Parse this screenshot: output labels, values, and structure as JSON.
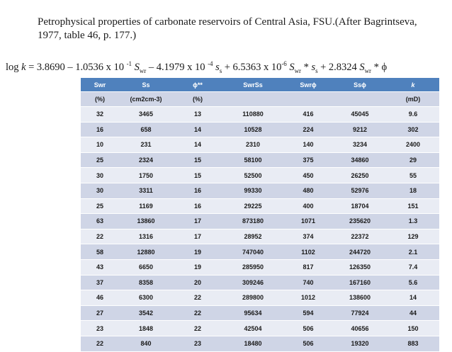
{
  "title": "Petrophysical properties of carbonate reservoirs  of Central Asia, FSU.(After Bagrintseva, 1977, table 46, p. 177.)",
  "formula": {
    "lhs_log": "log ",
    "lhs_k": "k",
    "eq_const": " = 3.8690 – 1.0536 x 10 ",
    "exp1": "-1",
    "sym1": " S",
    "sub1": "wr",
    "t2": " – 4.1979 x 10 ",
    "exp2": "-4",
    "sym2": " s",
    "sub2": "s",
    "t3": " + 6.5363 x 10",
    "exp3": "-6",
    "sym3": " S",
    "sub3": "wr",
    "t3b": " * ",
    "sym3b": "s",
    "sub3b": "s",
    "t4": " + 2.8324 ",
    "sym4": "S",
    "sub4": "wr",
    "t4b": " * ϕ"
  },
  "table": {
    "headers": [
      "Swr",
      "Ss",
      "ϕ**",
      "SwrSs",
      "Swrϕ",
      "Ssϕ",
      "k"
    ],
    "units": [
      "(%)",
      "(cm2cm-3)",
      "(%)",
      "",
      "",
      "",
      "(mD)"
    ],
    "rows": [
      [
        "32",
        "3465",
        "13",
        "110880",
        "416",
        "45045",
        "9.6"
      ],
      [
        "16",
        "658",
        "14",
        "10528",
        "224",
        "9212",
        "302"
      ],
      [
        "10",
        "231",
        "14",
        "2310",
        "140",
        "3234",
        "2400"
      ],
      [
        "25",
        "2324",
        "15",
        "58100",
        "375",
        "34860",
        "29"
      ],
      [
        "30",
        "1750",
        "15",
        "52500",
        "450",
        "26250",
        "55"
      ],
      [
        "30",
        "3311",
        "16",
        "99330",
        "480",
        "52976",
        "18"
      ],
      [
        "25",
        "1169",
        "16",
        "29225",
        "400",
        "18704",
        "151"
      ],
      [
        "63",
        "13860",
        "17",
        "873180",
        "1071",
        "235620",
        "1.3"
      ],
      [
        "22",
        "1316",
        "17",
        "28952",
        "374",
        "22372",
        "129"
      ],
      [
        "58",
        "12880",
        "19",
        "747040",
        "1102",
        "244720",
        "2.1"
      ],
      [
        "43",
        "6650",
        "19",
        "285950",
        "817",
        "126350",
        "7.4"
      ],
      [
        "37",
        "8358",
        "20",
        "309246",
        "740",
        "167160",
        "5.6"
      ],
      [
        "46",
        "6300",
        "22",
        "289800",
        "1012",
        "138600",
        "14"
      ],
      [
        "27",
        "3542",
        "22",
        "95634",
        "594",
        "77924",
        "44"
      ],
      [
        "23",
        "1848",
        "22",
        "42504",
        "506",
        "40656",
        "150"
      ],
      [
        "22",
        "840",
        "23",
        "18480",
        "506",
        "19320",
        "883"
      ]
    ]
  }
}
